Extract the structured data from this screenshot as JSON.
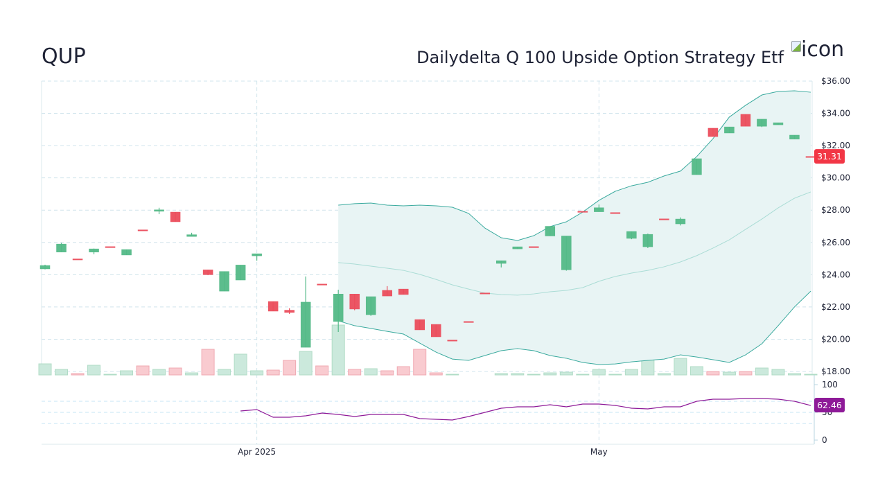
{
  "header": {
    "ticker": "QUP",
    "name": "Dailydelta Q 100 Upside Option Strategy Etf",
    "logo_alt": "icon"
  },
  "colors": {
    "text": "#1e2235",
    "up": "#53b987",
    "down": "#eb4d5c",
    "up_volume": "#cbe9dc",
    "up_volume_stroke": "#b0dcc6",
    "down_volume": "#f9cbd0",
    "down_volume_stroke": "#f0a9b2",
    "band_line": "#3aaa9e",
    "band_mid": "#aadcd5",
    "band_fill": "#e8f4f4",
    "grid": "#d0e4ec",
    "rsi_grid": "#c6e6f5",
    "rsi_line": "#8e1a98",
    "last_price_badge": "#f23645",
    "rsi_badge": "#8e1a98"
  },
  "chart_data": {
    "type": "candlestick",
    "title": "QUP",
    "subtitle": "Dailydelta Q 100 Upside Option Strategy Etf",
    "xlabel": "",
    "ylabel": "",
    "x_tick_labels": [
      {
        "index": 13,
        "label": "Apr 2025"
      },
      {
        "index": 34,
        "label": "May"
      }
    ],
    "price_axis": {
      "min": 18,
      "max": 36,
      "step": 2,
      "ticks": [
        "$36.00",
        "$34.00",
        "$32.00",
        "$30.00",
        "$28.00",
        "$26.00",
        "$24.00",
        "$22.00",
        "$20.00",
        "$18.00"
      ]
    },
    "grid": true,
    "last_price": "31.31",
    "candles_ohlc": [
      [
        24.36,
        24.62,
        24.33,
        24.57
      ],
      [
        25.4,
        25.97,
        25.4,
        25.9
      ],
      [
        24.98,
        24.98,
        24.92,
        24.92
      ],
      [
        25.4,
        25.62,
        25.27,
        25.6
      ],
      [
        25.74,
        25.74,
        25.71,
        25.71
      ],
      [
        25.22,
        25.56,
        25.22,
        25.56
      ],
      [
        26.78,
        26.78,
        26.75,
        26.75
      ],
      [
        27.93,
        28.15,
        27.75,
        28.02
      ],
      [
        27.88,
        27.88,
        27.28,
        27.28
      ],
      [
        26.37,
        26.6,
        26.37,
        26.48
      ],
      [
        24.3,
        24.3,
        23.97,
        24.0
      ],
      [
        22.98,
        24.2,
        22.98,
        24.2
      ],
      [
        23.67,
        24.6,
        23.67,
        24.6
      ],
      [
        25.17,
        25.3,
        24.87,
        25.3
      ],
      [
        22.34,
        22.34,
        21.74,
        21.74
      ],
      [
        21.8,
        21.92,
        21.57,
        21.66
      ],
      [
        19.5,
        23.89,
        19.5,
        22.3
      ],
      [
        23.42,
        23.42,
        23.38,
        23.38
      ],
      [
        21.1,
        23.07,
        20.45,
        22.8
      ],
      [
        22.8,
        22.8,
        21.8,
        21.87
      ],
      [
        21.52,
        22.64,
        21.45,
        22.64
      ],
      [
        23.03,
        23.29,
        22.68,
        22.68
      ],
      [
        23.11,
        23.11,
        22.77,
        22.77
      ],
      [
        21.22,
        21.22,
        20.58,
        20.58
      ],
      [
        20.92,
        20.92,
        20.15,
        20.15
      ],
      [
        19.95,
        19.95,
        19.92,
        19.92
      ],
      [
        21.1,
        21.1,
        21.07,
        21.07
      ],
      [
        22.87,
        22.87,
        22.84,
        22.84
      ],
      [
        24.7,
        24.87,
        24.45,
        24.87
      ],
      [
        25.6,
        25.73,
        25.6,
        25.73
      ],
      [
        25.74,
        25.74,
        25.71,
        25.71
      ],
      [
        26.4,
        27.0,
        26.4,
        27.0
      ],
      [
        24.3,
        26.4,
        24.25,
        26.4
      ],
      [
        27.93,
        27.93,
        27.9,
        27.9
      ],
      [
        27.9,
        28.35,
        27.9,
        28.15
      ],
      [
        27.85,
        27.85,
        27.82,
        27.82
      ],
      [
        26.25,
        26.68,
        26.2,
        26.68
      ],
      [
        25.73,
        26.55,
        25.65,
        26.5
      ],
      [
        27.46,
        27.46,
        27.43,
        27.43
      ],
      [
        27.15,
        27.55,
        27.05,
        27.45
      ],
      [
        30.2,
        31.19,
        30.2,
        31.19
      ],
      [
        33.08,
        33.08,
        32.56,
        32.56
      ],
      [
        32.78,
        33.16,
        32.78,
        33.16
      ],
      [
        33.94,
        33.94,
        33.2,
        33.2
      ],
      [
        33.2,
        33.64,
        33.15,
        33.64
      ],
      [
        33.29,
        33.42,
        33.29,
        33.42
      ],
      [
        32.4,
        32.65,
        32.4,
        32.65
      ],
      [
        31.33,
        31.33,
        31.31,
        31.31
      ]
    ],
    "volume_relative": [
      16,
      8,
      2,
      14,
      1,
      6,
      13,
      8,
      10,
      3,
      37,
      8,
      30,
      6,
      7,
      21,
      34,
      13,
      72,
      8,
      9,
      6,
      12,
      37,
      3,
      1,
      0,
      0,
      2,
      2,
      1,
      3,
      4,
      1,
      8,
      1,
      8,
      23,
      2,
      24,
      12,
      5,
      4,
      5,
      10,
      8,
      2,
      1
    ],
    "volume_direction": [
      "up",
      "up",
      "down",
      "up",
      "up",
      "up",
      "down",
      "up",
      "down",
      "up",
      "down",
      "up",
      "up",
      "up",
      "down",
      "down",
      "up",
      "down",
      "up",
      "down",
      "up",
      "down",
      "down",
      "down",
      "down",
      "up",
      "up",
      "up",
      "up",
      "up",
      "up",
      "up",
      "up",
      "up",
      "up",
      "up",
      "up",
      "up",
      "up",
      "up",
      "up",
      "down",
      "up",
      "down",
      "up",
      "up",
      "up",
      "up"
    ],
    "bollinger": {
      "start_index": 18,
      "upper": [
        28.31,
        28.4,
        28.44,
        28.31,
        28.27,
        28.31,
        28.27,
        28.18,
        27.8,
        26.89,
        26.29,
        26.12,
        26.42,
        26.98,
        27.28,
        27.88,
        28.61,
        29.17,
        29.51,
        29.73,
        30.12,
        30.42,
        31.32,
        32.43,
        33.77,
        34.5,
        35.14,
        35.36,
        35.4,
        35.31
      ],
      "middle": [
        24.75,
        24.66,
        24.53,
        24.4,
        24.27,
        24.02,
        23.71,
        23.37,
        23.11,
        22.86,
        22.77,
        22.73,
        22.81,
        22.94,
        23.03,
        23.2,
        23.59,
        23.89,
        24.1,
        24.27,
        24.49,
        24.79,
        25.18,
        25.65,
        26.16,
        26.81,
        27.45,
        28.14,
        28.74,
        29.13
      ],
      "lower": [
        21.14,
        20.84,
        20.67,
        20.49,
        20.32,
        19.76,
        19.2,
        18.77,
        18.69,
        18.99,
        19.29,
        19.42,
        19.29,
        18.99,
        18.82,
        18.56,
        18.43,
        18.47,
        18.6,
        18.69,
        18.77,
        19.03,
        18.9,
        18.73,
        18.56,
        19.03,
        19.72,
        20.84,
        22.0,
        22.98
      ]
    },
    "rsi": {
      "start_index": 12,
      "values": [
        52.5,
        55,
        41.25,
        41.25,
        43.75,
        48.75,
        46.25,
        42.5,
        46.25,
        46.25,
        46.25,
        38.75,
        37.5,
        36.25,
        42.5,
        50,
        57.5,
        60,
        60,
        63.75,
        60,
        65,
        65,
        62.5,
        57.5,
        56.25,
        60,
        60,
        70,
        73.75,
        73.75,
        75,
        75,
        73.75,
        70,
        62.46
      ],
      "last": "62.46",
      "ticks": [
        {
          "value": 100,
          "label": "100"
        },
        {
          "value": 50,
          "label": "50"
        },
        {
          "value": 0,
          "label": "0"
        }
      ],
      "grid_levels": [
        70,
        50,
        30
      ],
      "ylim": [
        0,
        100
      ]
    }
  }
}
